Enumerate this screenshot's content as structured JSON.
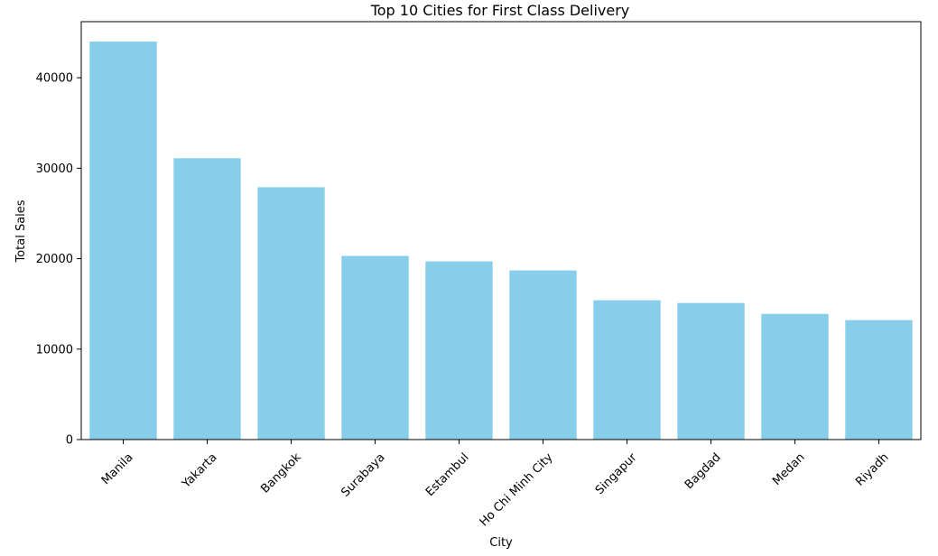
{
  "colors": {
    "bar": "#87CEEB",
    "axis": "#000000",
    "background": "#ffffff"
  },
  "chart_data": {
    "type": "bar",
    "title": "Top 10 Cities for First Class Delivery",
    "xlabel": "City",
    "ylabel": "Total Sales",
    "categories": [
      "Manila",
      "Yakarta",
      "Bangkok",
      "Surabaya",
      "Estambul",
      "Ho Chi Minh City",
      "Singapur",
      "Bagdad",
      "Medan",
      "Riyadh"
    ],
    "values": [
      44000,
      31100,
      27900,
      20300,
      19700,
      18700,
      15400,
      15100,
      13900,
      13200
    ],
    "ylim": [
      0,
      46200
    ],
    "yticks": [
      0,
      10000,
      20000,
      30000,
      40000
    ],
    "ytick_labels": [
      "0",
      "10000",
      "20000",
      "30000",
      "40000"
    ],
    "grid": false,
    "legend": "none"
  }
}
